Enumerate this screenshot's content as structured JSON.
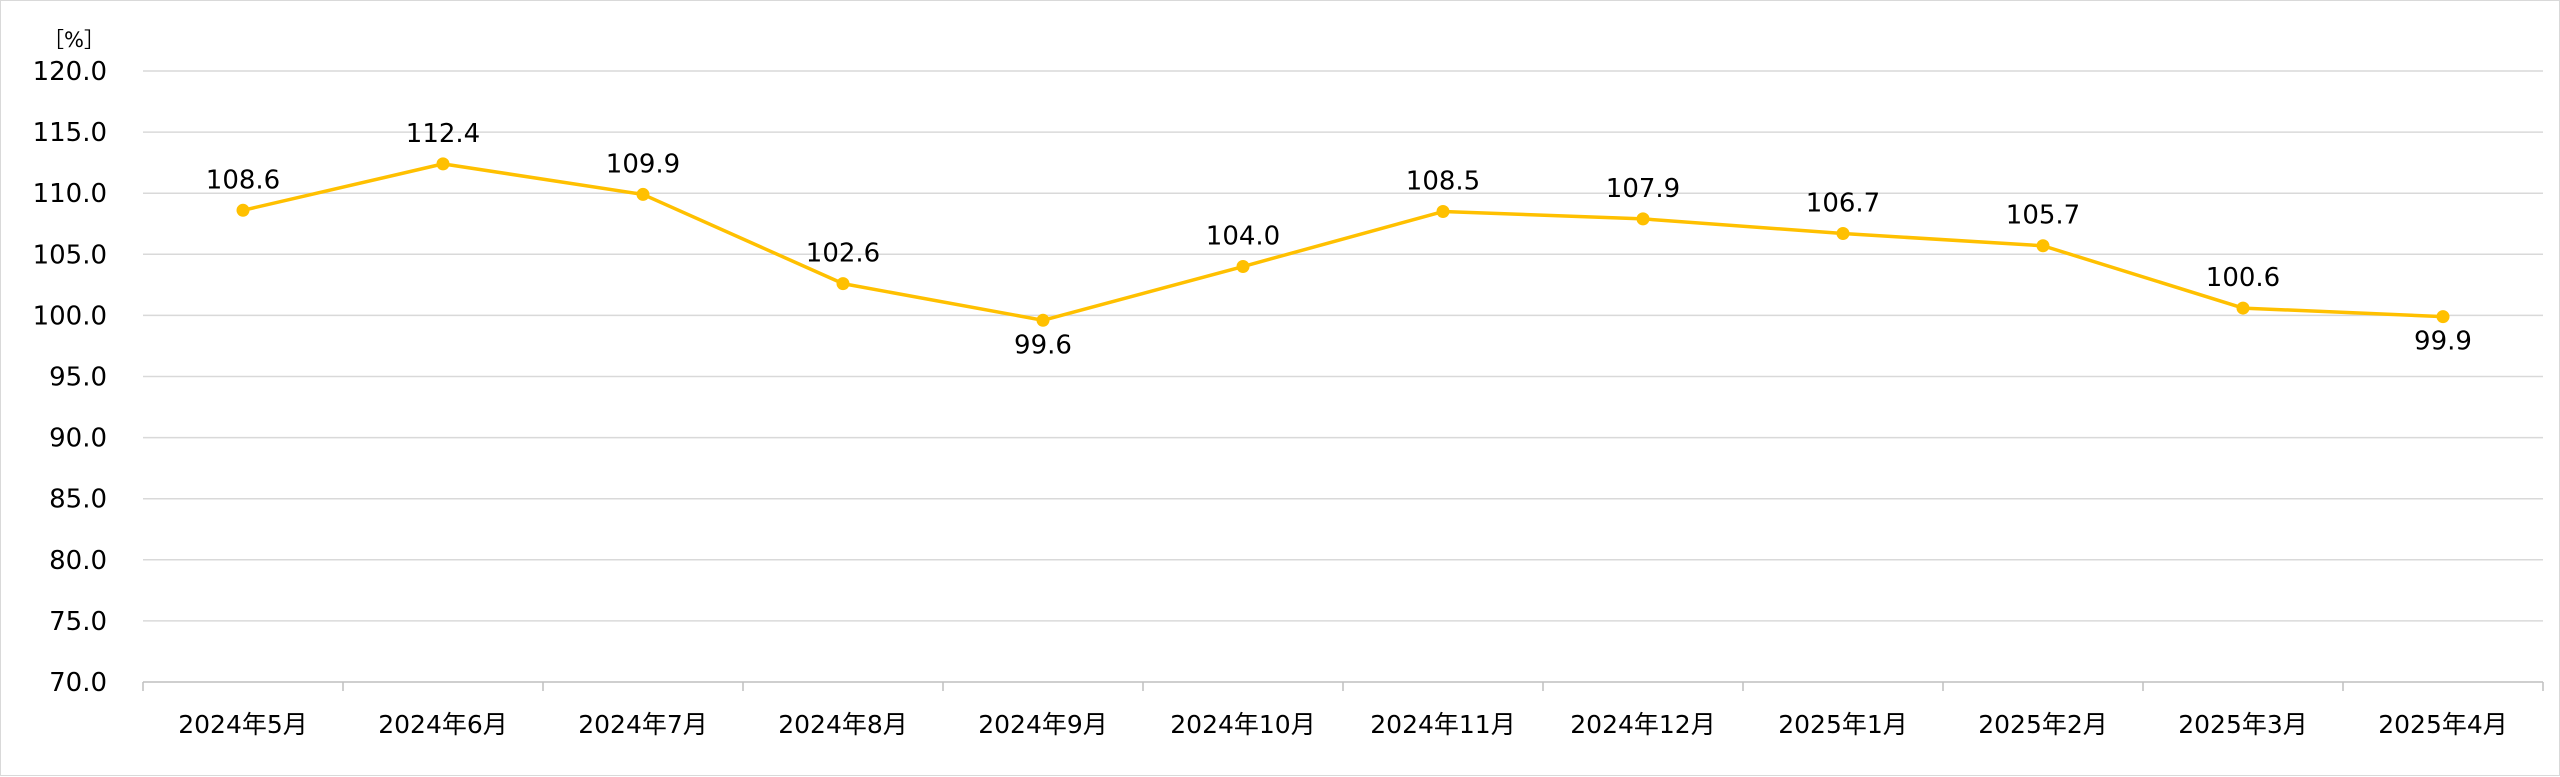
{
  "chart_data": {
    "type": "line",
    "title": "",
    "xlabel": "",
    "ylabel": "",
    "unit_label": "［%］",
    "categories": [
      "2024年5月",
      "2024年6月",
      "2024年7月",
      "2024年8月",
      "2024年9月",
      "2024年10月",
      "2024年11月",
      "2024年12月",
      "2025年1月",
      "2025年2月",
      "2025年3月",
      "2025年4月"
    ],
    "series": [
      {
        "values": [
          108.6,
          112.4,
          109.9,
          102.6,
          99.6,
          104.0,
          108.5,
          107.9,
          106.7,
          105.7,
          100.6,
          99.9
        ]
      }
    ],
    "data_labels": [
      "108.6",
      "112.4",
      "109.9",
      "102.6",
      "99.6",
      "104.0",
      "108.5",
      "107.9",
      "106.7",
      "105.7",
      "100.6",
      "99.9"
    ],
    "label_below": [
      false,
      false,
      false,
      false,
      true,
      false,
      false,
      false,
      false,
      false,
      false,
      true
    ],
    "yticks": [
      "70.0",
      "75.0",
      "80.0",
      "85.0",
      "90.0",
      "95.0",
      "100.0",
      "105.0",
      "110.0",
      "115.0",
      "120.0"
    ],
    "ylim": [
      70,
      120
    ],
    "grid": true,
    "legend": "none",
    "colors": {
      "line": "#FFC000",
      "grid": "#d9d9d9",
      "axis": "#bfbfbf"
    }
  }
}
